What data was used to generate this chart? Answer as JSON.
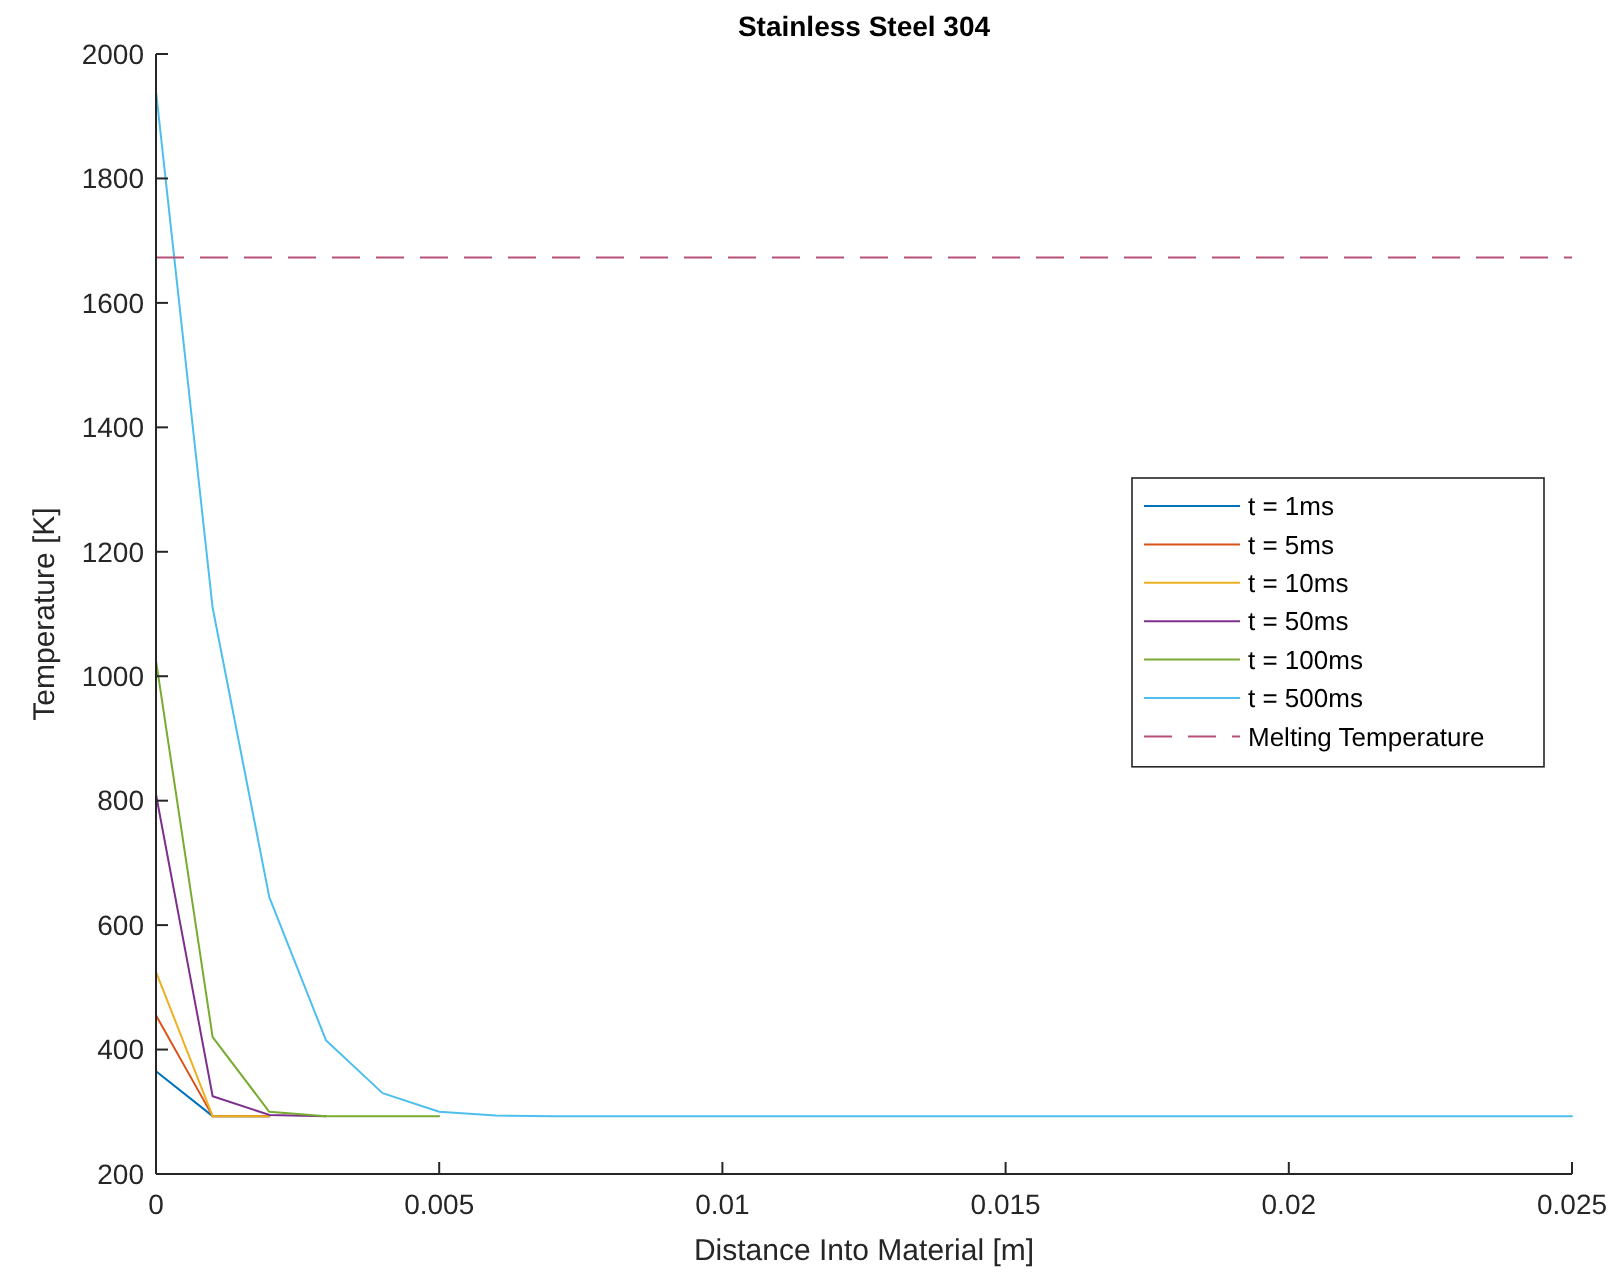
{
  "chart_data": {
    "type": "line",
    "title": "Stainless Steel 304",
    "xlabel": "Distance Into Material [m]",
    "ylabel": "Temperature [K]",
    "x": [
      0,
      0.001,
      0.002,
      0.003,
      0.004,
      0.005,
      0.006,
      0.007,
      0.008,
      0.009,
      0.01,
      0.011,
      0.012,
      0.013,
      0.014,
      0.015,
      0.016,
      0.017,
      0.018,
      0.019,
      0.02,
      0.021,
      0.022,
      0.023,
      0.024,
      0.025
    ],
    "series": [
      {
        "name": "t = 1ms",
        "color": "#0072bd",
        "values": [
          365,
          293,
          293,
          null,
          null,
          null,
          null,
          null,
          null,
          null,
          null,
          null,
          null,
          null,
          null,
          null,
          null,
          null,
          null,
          null,
          null,
          null,
          null,
          null,
          null,
          null
        ]
      },
      {
        "name": "t = 5ms",
        "color": "#d95319",
        "values": [
          455,
          293,
          293,
          null,
          null,
          null,
          null,
          null,
          null,
          null,
          null,
          null,
          null,
          null,
          null,
          null,
          null,
          null,
          null,
          null,
          null,
          null,
          null,
          null,
          null,
          null
        ]
      },
      {
        "name": "t = 10ms",
        "color": "#edb120",
        "values": [
          525,
          293,
          293,
          null,
          null,
          null,
          null,
          null,
          null,
          null,
          null,
          null,
          null,
          null,
          null,
          null,
          null,
          null,
          null,
          null,
          null,
          null,
          null,
          null,
          null,
          null
        ]
      },
      {
        "name": "t = 50ms",
        "color": "#7e2f8e",
        "values": [
          810,
          325,
          295,
          293,
          null,
          null,
          null,
          null,
          null,
          null,
          null,
          null,
          null,
          null,
          null,
          null,
          null,
          null,
          null,
          null,
          null,
          null,
          null,
          null,
          null,
          null
        ]
      },
      {
        "name": "t = 100ms",
        "color": "#77ac30",
        "values": [
          1025,
          420,
          300,
          293,
          293,
          293,
          null,
          null,
          null,
          null,
          null,
          null,
          null,
          null,
          null,
          null,
          null,
          null,
          null,
          null,
          null,
          null,
          null,
          null,
          null,
          null
        ]
      },
      {
        "name": "t = 500ms",
        "color": "#4dbeee",
        "values": [
          1940,
          1110,
          645,
          415,
          330,
          300,
          294,
          293,
          293,
          293,
          293,
          293,
          293,
          293,
          293,
          293,
          293,
          293,
          293,
          293,
          293,
          293,
          293,
          293,
          293,
          293
        ]
      }
    ],
    "ref_lines": [
      {
        "axis": "y",
        "value": 1673,
        "label": "Melting Temperature",
        "color": "#b8507a",
        "line_style": "dashed"
      }
    ],
    "xlim": [
      0,
      0.025
    ],
    "xticks": [
      0,
      0.005,
      0.01,
      0.015,
      0.02,
      0.025
    ],
    "ylim": [
      200,
      2000
    ],
    "yticks": [
      200,
      400,
      600,
      800,
      1000,
      1200,
      1400,
      1600,
      1800,
      2000
    ],
    "legend": "right",
    "marker": "none",
    "line_style": "solid"
  }
}
